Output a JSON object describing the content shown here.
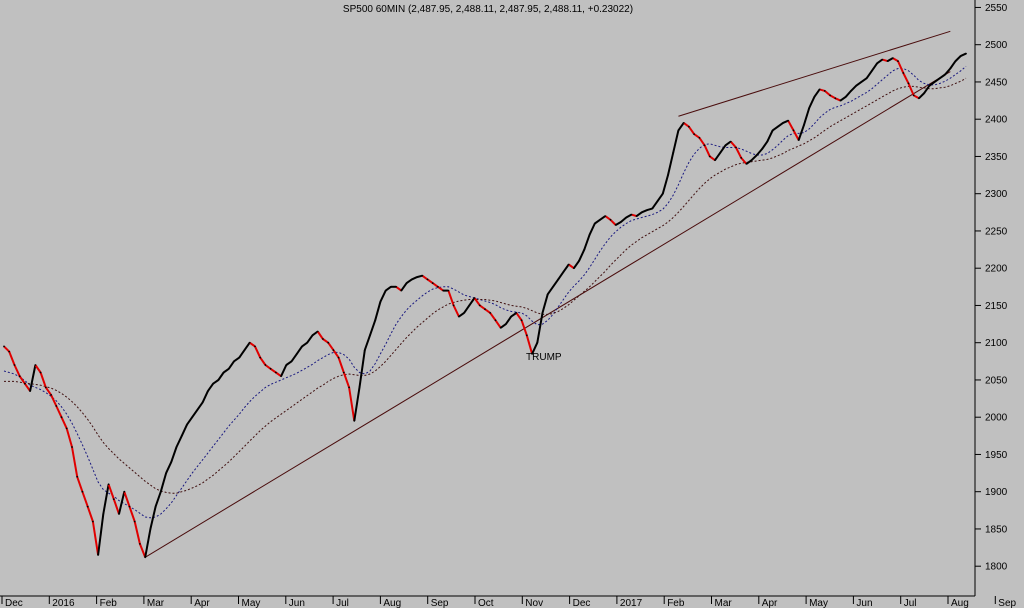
{
  "chart_data": {
    "type": "line",
    "title": "SP500 60MIN (2,487.95, 2,488.11, 2,487.95, 2,488.11, +0.23022)",
    "xlabel": "",
    "ylabel": "",
    "ylim": [
      1760,
      2560
    ],
    "grid": false,
    "y_ticks": [
      1800,
      1850,
      1900,
      1950,
      2000,
      2050,
      2100,
      2150,
      2200,
      2250,
      2300,
      2350,
      2400,
      2450,
      2500,
      2550
    ],
    "x_ticks": [
      "Dec",
      "2016",
      "Feb",
      "Mar",
      "Apr",
      "May",
      "Jun",
      "Jul",
      "Aug",
      "Sep",
      "Oct",
      "Nov",
      "Dec",
      "2017",
      "Feb",
      "Mar",
      "Apr",
      "May",
      "Jun",
      "Jul",
      "Aug",
      "Sep"
    ],
    "x_tick_index": [
      0,
      1,
      2,
      3,
      4,
      5,
      6,
      7,
      8,
      9,
      10,
      11,
      12,
      13,
      14,
      15,
      16,
      17,
      18,
      19,
      20,
      21
    ],
    "series": [
      {
        "values": [
          2095,
          2088,
          2070,
          2055,
          2045,
          2035,
          2070,
          2060,
          2040,
          2030,
          2015,
          2000,
          1985,
          1960,
          1920,
          1900,
          1880,
          1860,
          1815,
          1870,
          1910,
          1890,
          1870,
          1900,
          1880,
          1860,
          1830,
          1812,
          1850,
          1880,
          1900,
          1925,
          1940,
          1960,
          1975,
          1990,
          2000,
          2010,
          2020,
          2035,
          2045,
          2050,
          2060,
          2065,
          2075,
          2080,
          2090,
          2100,
          2095,
          2080,
          2070,
          2065,
          2060,
          2055,
          2070,
          2075,
          2085,
          2095,
          2100,
          2110,
          2115,
          2105,
          2100,
          2090,
          2080,
          2060,
          2040,
          1995,
          2040,
          2090,
          2110,
          2130,
          2155,
          2170,
          2175,
          2175,
          2170,
          2180,
          2185,
          2188,
          2190,
          2185,
          2180,
          2175,
          2170,
          2170,
          2150,
          2135,
          2140,
          2150,
          2160,
          2150,
          2145,
          2140,
          2130,
          2120,
          2125,
          2135,
          2140,
          2130,
          2110,
          2085,
          2100,
          2140,
          2165,
          2175,
          2185,
          2195,
          2205,
          2200,
          2210,
          2225,
          2245,
          2260,
          2265,
          2270,
          2265,
          2258,
          2262,
          2268,
          2272,
          2270,
          2275,
          2278,
          2280,
          2290,
          2300,
          2325,
          2355,
          2385,
          2395,
          2390,
          2380,
          2375,
          2365,
          2350,
          2345,
          2355,
          2365,
          2370,
          2362,
          2348,
          2340,
          2345,
          2352,
          2360,
          2370,
          2385,
          2390,
          2395,
          2398,
          2385,
          2372,
          2392,
          2415,
          2430,
          2440,
          2438,
          2432,
          2428,
          2425,
          2430,
          2438,
          2445,
          2450,
          2455,
          2465,
          2475,
          2480,
          2478,
          2482,
          2478,
          2462,
          2448,
          2432,
          2428,
          2435,
          2445,
          2450,
          2455,
          2460,
          2468,
          2478,
          2485,
          2488
        ]
      },
      {
        "values": [
          2062,
          2060,
          2058,
          2054,
          2049,
          2043,
          2040,
          2037,
          2033,
          2028,
          2022,
          2014,
          2004,
          1992,
          1978,
          1963,
          1947,
          1930,
          1913,
          1903,
          1898,
          1894,
          1888,
          1884,
          1880,
          1876,
          1871,
          1866,
          1865,
          1866,
          1870,
          1877,
          1885,
          1895,
          1905,
          1915,
          1925,
          1934,
          1943,
          1952,
          1961,
          1970,
          1979,
          1988,
          1996,
          2004,
          2013,
          2021,
          2028,
          2034,
          2040,
          2044,
          2047,
          2050,
          2053,
          2056,
          2059,
          2063,
          2067,
          2071,
          2076,
          2080,
          2084,
          2087,
          2087,
          2084,
          2078,
          2067,
          2060,
          2058,
          2062,
          2072,
          2085,
          2098,
          2112,
          2125,
          2135,
          2144,
          2151,
          2157,
          2163,
          2168,
          2172,
          2174,
          2175,
          2175,
          2172,
          2168,
          2164,
          2162,
          2160,
          2158,
          2156,
          2154,
          2151,
          2147,
          2144,
          2142,
          2141,
          2140,
          2136,
          2129,
          2124,
          2125,
          2130,
          2138,
          2148,
          2158,
          2168,
          2176,
          2183,
          2191,
          2201,
          2212,
          2223,
          2233,
          2242,
          2249,
          2255,
          2260,
          2264,
          2266,
          2268,
          2270,
          2272,
          2275,
          2279,
          2287,
          2298,
          2312,
          2328,
          2342,
          2353,
          2361,
          2366,
          2367,
          2365,
          2363,
          2362,
          2362,
          2362,
          2360,
          2357,
          2354,
          2352,
          2352,
          2354,
          2359,
          2365,
          2372,
          2378,
          2381,
          2381,
          2382,
          2387,
          2394,
          2402,
          2408,
          2413,
          2416,
          2418,
          2421,
          2424,
          2428,
          2432,
          2436,
          2441,
          2447,
          2453,
          2459,
          2465,
          2468,
          2468,
          2465,
          2459,
          2452,
          2448,
          2446,
          2446,
          2448,
          2451,
          2455,
          2460,
          2465,
          2471
        ]
      },
      {
        "values": [
          2048,
          2048,
          2048,
          2047,
          2046,
          2045,
          2044,
          2043,
          2041,
          2039,
          2036,
          2032,
          2027,
          2021,
          2014,
          2006,
          1997,
          1987,
          1976,
          1966,
          1958,
          1951,
          1944,
          1938,
          1932,
          1926,
          1920,
          1914,
          1909,
          1904,
          1901,
          1899,
          1898,
          1898,
          1900,
          1902,
          1905,
          1908,
          1912,
          1917,
          1922,
          1928,
          1934,
          1940,
          1947,
          1954,
          1961,
          1968,
          1975,
          1982,
          1988,
          1994,
          1999,
          2004,
          2009,
          2014,
          2019,
          2024,
          2029,
          2034,
          2039,
          2043,
          2048,
          2052,
          2055,
          2057,
          2058,
          2057,
          2056,
          2056,
          2058,
          2062,
          2068,
          2075,
          2083,
          2091,
          2099,
          2107,
          2114,
          2121,
          2127,
          2133,
          2139,
          2144,
          2148,
          2152,
          2154,
          2156,
          2157,
          2158,
          2158,
          2158,
          2158,
          2157,
          2156,
          2154,
          2152,
          2150,
          2149,
          2148,
          2146,
          2143,
          2140,
          2138,
          2138,
          2139,
          2142,
          2146,
          2151,
          2157,
          2163,
          2169,
          2175,
          2182,
          2189,
          2196,
          2204,
          2211,
          2218,
          2225,
          2231,
          2236,
          2241,
          2245,
          2249,
          2253,
          2257,
          2262,
          2268,
          2275,
          2283,
          2291,
          2299,
          2307,
          2314,
          2320,
          2325,
          2329,
          2333,
          2336,
          2339,
          2341,
          2342,
          2343,
          2344,
          2345,
          2346,
          2348,
          2351,
          2354,
          2358,
          2361,
          2364,
          2367,
          2371,
          2375,
          2380,
          2385,
          2390,
          2394,
          2398,
          2402,
          2406,
          2410,
          2414,
          2418,
          2422,
          2426,
          2430,
          2434,
          2438,
          2441,
          2443,
          2444,
          2444,
          2443,
          2442,
          2441,
          2441,
          2442,
          2443,
          2445,
          2448,
          2451,
          2455
        ]
      }
    ],
    "trendlines": [
      {
        "from": {
          "x": 27,
          "y": 1812
        },
        "to": {
          "x": 181,
          "y": 2464
        }
      },
      {
        "from": {
          "x": 129,
          "y": 2404
        },
        "to": {
          "x": 181,
          "y": 2518
        }
      }
    ],
    "annotations": [
      {
        "text": "TRUMP",
        "x": 101,
        "y": 2085
      }
    ]
  },
  "colors": {
    "background": "#c0c0c0",
    "price_up": "#000000",
    "price_down": "#e00000",
    "ma_fast": "#1a1a80",
    "ma_slow": "#401010",
    "trendline": "#4a0d0d",
    "axis": "#000000"
  }
}
